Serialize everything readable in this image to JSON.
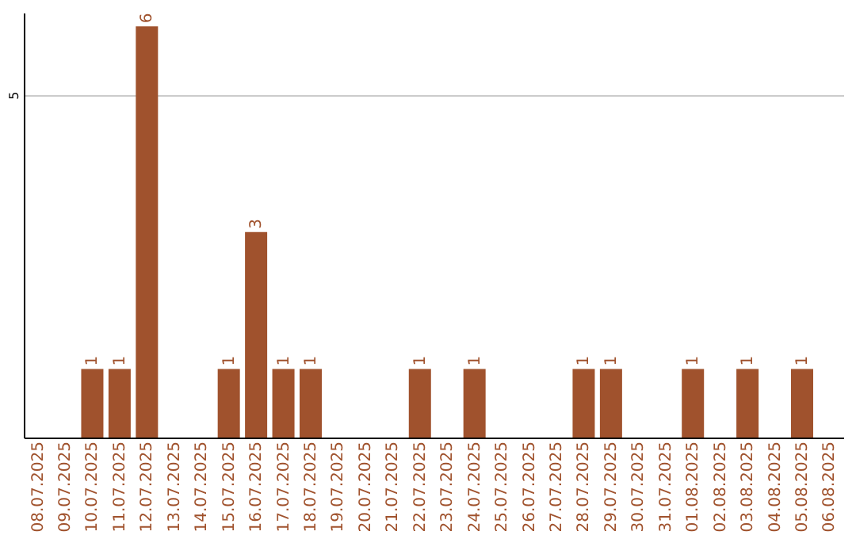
{
  "chart_data": {
    "type": "bar",
    "categories": [
      "08.07.2025",
      "09.07.2025",
      "10.07.2025",
      "11.07.2025",
      "12.07.2025",
      "13.07.2025",
      "14.07.2025",
      "15.07.2025",
      "16.07.2025",
      "17.07.2025",
      "18.07.2025",
      "19.07.2025",
      "20.07.2025",
      "21.07.2025",
      "22.07.2025",
      "23.07.2025",
      "24.07.2025",
      "25.07.2025",
      "26.07.2025",
      "27.07.2025",
      "28.07.2025",
      "29.07.2025",
      "30.07.2025",
      "31.07.2025",
      "01.08.2025",
      "02.08.2025",
      "03.08.2025",
      "04.08.2025",
      "05.08.2025",
      "06.08.2025"
    ],
    "values": [
      null,
      null,
      1,
      1,
      6,
      null,
      null,
      1,
      3,
      1,
      1,
      null,
      null,
      null,
      1,
      null,
      1,
      null,
      null,
      null,
      1,
      1,
      null,
      null,
      1,
      null,
      1,
      null,
      1,
      null
    ],
    "color": "#a0522d",
    "ylim": [
      0,
      6.2
    ],
    "yticks": [
      5
    ],
    "grid": "y",
    "data_labels": true
  }
}
